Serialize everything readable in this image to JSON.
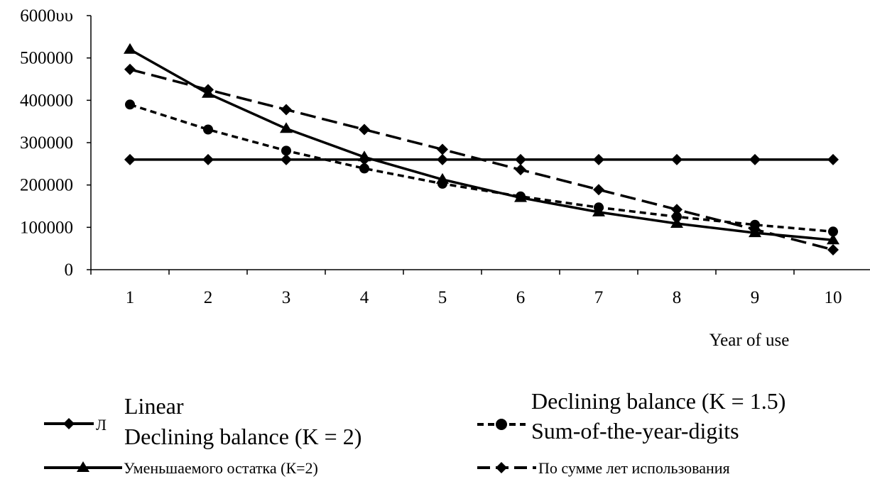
{
  "chart_data": {
    "type": "line",
    "title": "",
    "xlabel": "Year of use",
    "ylabel": "",
    "ylim": [
      0,
      600000
    ],
    "yticks": [
      "0",
      "100000",
      "200000",
      "300000",
      "400000",
      "500000",
      "6000υυ"
    ],
    "categories": [
      "1",
      "2",
      "3",
      "4",
      "5",
      "6",
      "7",
      "8",
      "9",
      "10"
    ],
    "grid": false,
    "legend_position": "bottom",
    "series": [
      {
        "name": "Linear",
        "style": "solid",
        "marker": "diamond",
        "values": [
          260000,
          260000,
          260000,
          260000,
          260000,
          260000,
          260000,
          260000,
          260000,
          260000
        ]
      },
      {
        "name": "Declining balance (K = 2)",
        "style": "solid",
        "marker": "triangle",
        "values": [
          520000,
          416000,
          333000,
          266000,
          213000,
          170000,
          136000,
          109000,
          87000,
          70000
        ]
      },
      {
        "name": "Sum-of-the-year-digits",
        "style": "dotted",
        "marker": "circle",
        "values": [
          390000,
          331000,
          281000,
          239000,
          203000,
          173000,
          147000,
          125000,
          106000,
          90000
        ]
      },
      {
        "name": "Declining balance (K = 1.5)",
        "style": "dashed",
        "marker": "diamond",
        "values": [
          473000,
          425000,
          378000,
          331000,
          284000,
          236000,
          189000,
          142000,
          95000,
          47000
        ]
      }
    ],
    "legend_ru": {
      "linear": "Л",
      "declining_k2": "Уменьшаемого остатка (К=2)",
      "sum_years": "По сумме лет использования"
    },
    "colors": {
      "line": "#000000",
      "background": "#ffffff"
    }
  }
}
